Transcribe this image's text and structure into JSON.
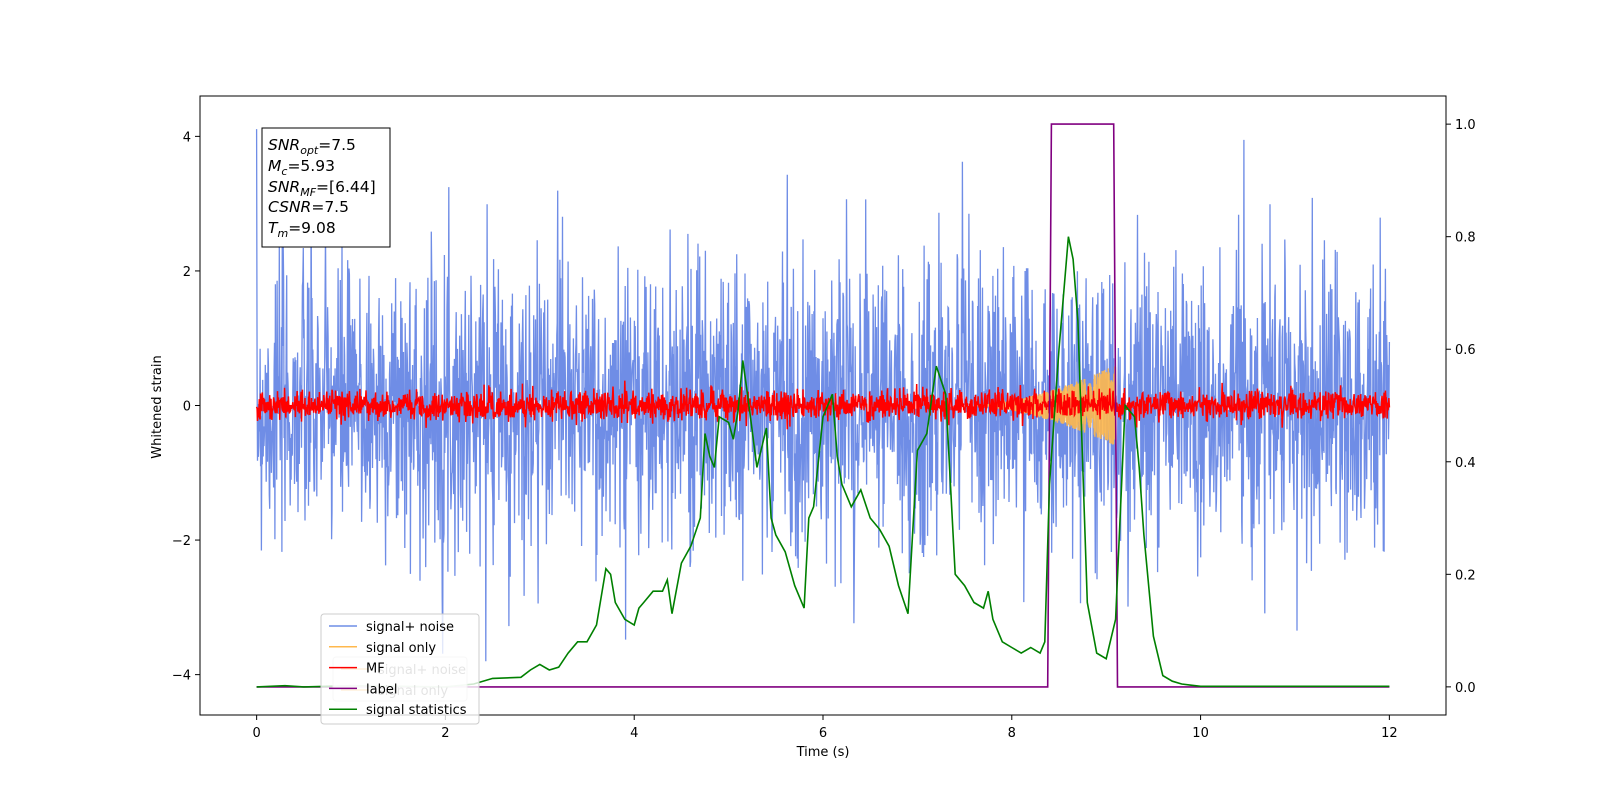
{
  "chart_data": {
    "type": "line",
    "title": "",
    "xlabel": "Time (s)",
    "ylabel": "Whitened strain",
    "xlim": [
      -0.6,
      12.6
    ],
    "ylim": [
      -4.6,
      4.6
    ],
    "y2lim": [
      -0.05,
      1.05
    ],
    "x_ticks": [
      0,
      2,
      4,
      6,
      8,
      10,
      12
    ],
    "x_tick_labels": [
      "0",
      "2",
      "4",
      "6",
      "8",
      "10",
      "12"
    ],
    "y_ticks": [
      -4,
      -2,
      0,
      2,
      4
    ],
    "y_tick_labels": [
      "−4",
      "−2",
      "0",
      "2",
      "4"
    ],
    "y2_ticks": [
      0.0,
      0.2,
      0.4,
      0.6,
      0.8,
      1.0
    ],
    "y2_tick_labels": [
      "0.0",
      "0.2",
      "0.4",
      "0.6",
      "0.8",
      "1.0"
    ],
    "annotation": {
      "rows": [
        {
          "name": "SNR",
          "sub": "opt",
          "value": "=7.5"
        },
        {
          "name": "M",
          "sub": "c",
          "value": "=5.93"
        },
        {
          "name": "SNR",
          "sub": "MF",
          "value": "=[6.44]"
        },
        {
          "name": "CSNR",
          "sub": "",
          "value": "=7.5"
        },
        {
          "name": "T",
          "sub": "m",
          "value": "=9.08"
        }
      ]
    },
    "legend_left": [
      {
        "label": "signal+ noise",
        "color": "#ffb84d"
      },
      {
        "label": "signal only",
        "color": "#ffb84d"
      }
    ],
    "legend_main": [
      {
        "label": "signal+ noise",
        "color": "#6f8de6"
      },
      {
        "label": "signal only",
        "color": "#ffb84d"
      },
      {
        "label": "MF",
        "color": "#ff0000"
      },
      {
        "label": "label",
        "color": "#800080"
      },
      {
        "label": "signal statistics",
        "color": "#008000"
      }
    ],
    "series": [
      {
        "name": "signal+ noise",
        "axis": "left",
        "color": "#6f8de6",
        "kind": "noise-band",
        "t_range": [
          0,
          12
        ],
        "typical_abs": 1.9,
        "peak_abs": 4.2,
        "min_value": -4.1
      },
      {
        "name": "signal only",
        "axis": "left",
        "color": "#ffb84d",
        "kind": "chirp",
        "t_range": [
          7.6,
          9.1
        ],
        "amplitude_end": 0.6
      },
      {
        "name": "MF",
        "axis": "left",
        "color": "#ff0000",
        "kind": "noise-band",
        "t_range": [
          0,
          12
        ],
        "typical_abs": 0.2,
        "peak_abs": 0.45
      },
      {
        "name": "label",
        "axis": "right",
        "color": "#800080",
        "x": [
          0,
          8.38,
          8.42,
          9.08,
          9.12,
          12
        ],
        "y": [
          0,
          0,
          1,
          1,
          0,
          0
        ]
      },
      {
        "name": "signal statistics",
        "axis": "right",
        "color": "#008000",
        "x": [
          0,
          0.3,
          0.5,
          1.0,
          2.0,
          2.3,
          2.5,
          2.8,
          2.9,
          3.0,
          3.1,
          3.2,
          3.3,
          3.4,
          3.5,
          3.6,
          3.7,
          3.75,
          3.8,
          3.9,
          4.0,
          4.05,
          4.1,
          4.2,
          4.3,
          4.35,
          4.4,
          4.5,
          4.6,
          4.7,
          4.75,
          4.8,
          4.85,
          4.9,
          5.0,
          5.05,
          5.1,
          5.15,
          5.2,
          5.3,
          5.4,
          5.45,
          5.5,
          5.6,
          5.7,
          5.8,
          5.85,
          5.9,
          6.0,
          6.1,
          6.15,
          6.2,
          6.3,
          6.4,
          6.5,
          6.6,
          6.7,
          6.8,
          6.9,
          7.0,
          7.1,
          7.2,
          7.3,
          7.4,
          7.5,
          7.6,
          7.7,
          7.75,
          7.8,
          7.9,
          8.0,
          8.1,
          8.2,
          8.3,
          8.35,
          8.4,
          8.5,
          8.6,
          8.65,
          8.7,
          8.8,
          8.9,
          9.0,
          9.1,
          9.2,
          9.3,
          9.35,
          9.4,
          9.5,
          9.6,
          9.7,
          9.8,
          9.9,
          10.0,
          11.0,
          12.0
        ],
        "y": [
          0,
          0.002,
          0,
          0.002,
          0,
          0.005,
          0.015,
          0.017,
          0.03,
          0.04,
          0.03,
          0.035,
          0.06,
          0.08,
          0.08,
          0.11,
          0.21,
          0.2,
          0.15,
          0.12,
          0.11,
          0.14,
          0.15,
          0.17,
          0.17,
          0.19,
          0.13,
          0.22,
          0.25,
          0.3,
          0.45,
          0.41,
          0.39,
          0.48,
          0.47,
          0.44,
          0.49,
          0.58,
          0.52,
          0.39,
          0.46,
          0.3,
          0.27,
          0.24,
          0.18,
          0.14,
          0.3,
          0.32,
          0.48,
          0.52,
          0.41,
          0.36,
          0.32,
          0.35,
          0.3,
          0.28,
          0.25,
          0.18,
          0.13,
          0.42,
          0.45,
          0.57,
          0.52,
          0.2,
          0.18,
          0.15,
          0.14,
          0.17,
          0.12,
          0.08,
          0.07,
          0.06,
          0.07,
          0.06,
          0.08,
          0.36,
          0.6,
          0.8,
          0.76,
          0.65,
          0.15,
          0.06,
          0.05,
          0.12,
          0.5,
          0.48,
          0.39,
          0.27,
          0.09,
          0.02,
          0.01,
          0.005,
          0.003,
          0.001,
          0.001,
          0.001
        ]
      }
    ]
  }
}
